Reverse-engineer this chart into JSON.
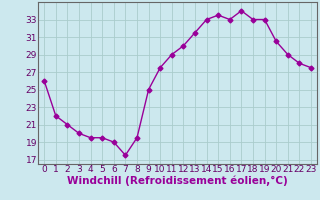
{
  "x": [
    0,
    1,
    2,
    3,
    4,
    5,
    6,
    7,
    8,
    9,
    10,
    11,
    12,
    13,
    14,
    15,
    16,
    17,
    18,
    19,
    20,
    21,
    22,
    23
  ],
  "y": [
    26,
    22,
    21,
    20,
    19.5,
    19.5,
    19,
    17.5,
    19.5,
    25,
    27.5,
    29,
    30,
    31.5,
    33,
    33.5,
    33,
    34,
    33,
    33,
    30.5,
    29,
    28,
    27.5
  ],
  "line_color": "#990099",
  "marker": "D",
  "marker_size": 2.5,
  "bg_color": "#cce8ee",
  "grid_color": "#aacccc",
  "xlabel": "Windchill (Refroidissement éolien,°C)",
  "xlabel_color": "#990099",
  "ylim": [
    16.5,
    35
  ],
  "yticks": [
    17,
    19,
    21,
    23,
    25,
    27,
    29,
    31,
    33
  ],
  "xlim": [
    -0.5,
    23.5
  ],
  "xticks": [
    0,
    1,
    2,
    3,
    4,
    5,
    6,
    7,
    8,
    9,
    10,
    11,
    12,
    13,
    14,
    15,
    16,
    17,
    18,
    19,
    20,
    21,
    22,
    23
  ],
  "tick_fontsize": 6.5,
  "xlabel_fontsize": 7.5
}
